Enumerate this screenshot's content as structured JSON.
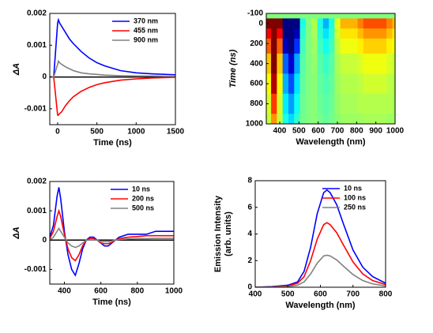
{
  "chart_data": [
    {
      "type": "line",
      "xlabel": "Time (ns)",
      "ylabel": "ΔA",
      "x": [
        -100,
        -50,
        0,
        10,
        25,
        50,
        100,
        150,
        200,
        300,
        400,
        500,
        600,
        800,
        1000,
        1200,
        1500
      ],
      "series": [
        {
          "name": "370 nm",
          "color": "#0000ff",
          "values": [
            0,
            0,
            0.0017,
            0.0018,
            0.0017,
            0.0016,
            0.0014,
            0.0012,
            0.00105,
            0.0008,
            0.0006,
            0.00045,
            0.00035,
            0.0002,
            0.00013,
            0.0001,
            7e-05
          ]
        },
        {
          "name": "455 nm",
          "color": "#ff0000",
          "values": [
            0,
            0,
            -0.0012,
            -0.0012,
            -0.00115,
            -0.0011,
            -0.0009,
            -0.00075,
            -0.00062,
            -0.00045,
            -0.00033,
            -0.00024,
            -0.00018,
            -0.0001,
            -6e-05,
            -3e-05,
            -1e-05
          ]
        },
        {
          "name": "900 nm",
          "color": "#808080",
          "values": [
            0,
            0,
            0.0004,
            0.0005,
            0.00045,
            0.0004,
            0.00032,
            0.00026,
            0.0002,
            0.00013,
            0.0001,
            8e-05,
            6e-05,
            4e-05,
            3e-05,
            3e-05,
            2e-05
          ]
        }
      ],
      "xlim": [
        -100,
        1500
      ],
      "ylim": [
        -0.0015,
        0.002
      ],
      "xticks": [
        0,
        500,
        1000,
        1500
      ],
      "yticks": [
        -0.001,
        0,
        0.001,
        0.002
      ],
      "legend": "upper right",
      "zero_line": true
    },
    {
      "type": "heatmap",
      "xlabel": "Wavelength (nm)",
      "ylabel": "Time (ns)",
      "colormap": "jet",
      "clim": [
        -0.0005,
        0.0005
      ],
      "y_reversed": true,
      "x": [
        340,
        370,
        400,
        430,
        460,
        490,
        520,
        550,
        580,
        610,
        640,
        670,
        700,
        730,
        760,
        790,
        820,
        850,
        880,
        910,
        940,
        970,
        1000
      ],
      "y": [
        -100,
        0,
        100,
        200,
        400,
        600,
        800,
        1000
      ],
      "z": [
        [
          0,
          0,
          0,
          0,
          0,
          0,
          0,
          0,
          0,
          0,
          0,
          0,
          0,
          0,
          0,
          0,
          0,
          0,
          0,
          0,
          0,
          0,
          0
        ],
        [
          0.0005,
          0.0018,
          0.0005,
          -0.0008,
          -0.0012,
          -0.0006,
          -0.0001,
          0,
          5e-05,
          -0.0001,
          -0.0002,
          -0.0001,
          0.0001,
          0.0002,
          0.0002,
          0.0002,
          0.00025,
          0.0003,
          0.0003,
          0.0003,
          0.0003,
          0.00025,
          0.0002
        ],
        [
          0.00038,
          0.00135,
          0.00038,
          -0.0006,
          -0.0009,
          -0.00045,
          -8e-05,
          0,
          4e-05,
          -8e-05,
          -0.00015,
          -8e-05,
          8e-05,
          0.00015,
          0.00015,
          0.00015,
          0.00019,
          0.00023,
          0.00023,
          0.00023,
          0.00023,
          0.00019,
          0.00015
        ],
        [
          0.00028,
          0.00099,
          0.00028,
          -0.00044,
          -0.00066,
          -0.00033,
          -6e-05,
          0,
          3e-05,
          -6e-05,
          -0.00011,
          -6e-05,
          6e-05,
          0.00011,
          0.00011,
          0.00011,
          0.00014,
          0.00017,
          0.00017,
          0.00017,
          0.00017,
          0.00014,
          0.00011
        ],
        [
          0.00018,
          0.00063,
          0.00018,
          -0.00028,
          -0.00042,
          -0.00021,
          -4e-05,
          0,
          2e-05,
          -4e-05,
          -7e-05,
          -4e-05,
          4e-05,
          7e-05,
          7e-05,
          7e-05,
          9e-05,
          0.00011,
          0.00011,
          0.00011,
          0.00011,
          9e-05,
          7e-05
        ],
        [
          0.00013,
          0.00045,
          0.00013,
          -0.0002,
          -0.0003,
          -0.00015,
          -3e-05,
          0,
          1e-05,
          -3e-05,
          -5e-05,
          -3e-05,
          3e-05,
          5e-05,
          5e-05,
          5e-05,
          6e-05,
          8e-05,
          8e-05,
          8e-05,
          8e-05,
          6e-05,
          5e-05
        ],
        [
          9e-05,
          0.00032,
          9e-05,
          -0.00014,
          -0.00022,
          -0.00011,
          -2e-05,
          0,
          1e-05,
          -2e-05,
          -4e-05,
          -2e-05,
          2e-05,
          4e-05,
          4e-05,
          4e-05,
          5e-05,
          5e-05,
          5e-05,
          5e-05,
          5e-05,
          5e-05,
          4e-05
        ],
        [
          7e-05,
          0.00023,
          7e-05,
          -0.0001,
          -0.00016,
          -8e-05,
          -1e-05,
          0,
          1e-05,
          -1e-05,
          -3e-05,
          -1e-05,
          1e-05,
          3e-05,
          3e-05,
          3e-05,
          3e-05,
          4e-05,
          4e-05,
          4e-05,
          4e-05,
          3e-05,
          3e-05
        ]
      ],
      "xlim": [
        330,
        1000
      ],
      "ylim": [
        -100,
        1000
      ],
      "xticks": [
        400,
        500,
        600,
        700,
        800,
        900,
        1000
      ],
      "yticks": [
        -100,
        0,
        200,
        400,
        600,
        800,
        1000
      ]
    },
    {
      "type": "line",
      "xlabel": "Time (ns)",
      "ylabel": "ΔA",
      "x": [
        320,
        340,
        360,
        370,
        380,
        400,
        420,
        440,
        460,
        480,
        500,
        520,
        540,
        560,
        580,
        600,
        620,
        640,
        660,
        680,
        700,
        750,
        800,
        850,
        900,
        950,
        1000
      ],
      "series": [
        {
          "name": "10 ns",
          "color": "#0000ff",
          "values": [
            0.0001,
            0.0005,
            0.0015,
            0.0018,
            0.0014,
            0.0003,
            -0.0005,
            -0.001,
            -0.0012,
            -0.0008,
            -0.0003,
            0,
            0.0001,
            0.0001,
            0,
            -0.0001,
            -0.0002,
            -0.0002,
            -0.0001,
            0,
            0.0001,
            0.0002,
            0.0002,
            0.0002,
            0.0003,
            0.0003,
            0.0003
          ]
        },
        {
          "name": "200 ns",
          "color": "#ff0000",
          "values": [
            5e-05,
            0.0003,
            0.0008,
            0.001,
            0.0008,
            0.0002,
            -0.0003,
            -0.0006,
            -0.0007,
            -0.0005,
            -0.0002,
            0,
            5e-05,
            5e-05,
            0,
            -0.0001,
            -0.00012,
            -0.00012,
            -8e-05,
            0,
            5e-05,
            0.0001,
            0.00012,
            0.00015,
            0.00015,
            0.00015,
            0.00015
          ]
        },
        {
          "name": "500 ns",
          "color": "#808080",
          "values": [
            0,
            0.0001,
            0.0003,
            0.0004,
            0.0003,
            0.0001,
            -0.0001,
            -0.0002,
            -0.00025,
            -0.0002,
            -0.0001,
            0,
            0,
            0,
            0,
            -5e-05,
            -5e-05,
            -5e-05,
            -3e-05,
            0,
            2e-05,
            4e-05,
            5e-05,
            5e-05,
            6e-05,
            6e-05,
            6e-05
          ]
        }
      ],
      "xlim": [
        320,
        1000
      ],
      "ylim": [
        -0.0015,
        0.002
      ],
      "xticks": [
        400,
        600,
        800,
        1000
      ],
      "yticks": [
        -0.001,
        0,
        0.001,
        0.002
      ],
      "legend": "upper right",
      "zero_line": true
    },
    {
      "type": "line",
      "xlabel": "Wavelength (nm)",
      "ylabel": [
        "Emission Intensity",
        "(arb. units)"
      ],
      "x": [
        400,
        450,
        500,
        530,
        550,
        570,
        590,
        610,
        620,
        630,
        650,
        670,
        700,
        730,
        760,
        800
      ],
      "series": [
        {
          "name": "10 ns",
          "color": "#0000ff",
          "values": [
            0,
            0.05,
            0.15,
            0.4,
            1.2,
            3,
            5.5,
            7.1,
            7.3,
            7.1,
            6.2,
            4.8,
            2.8,
            1.5,
            0.8,
            0.3
          ]
        },
        {
          "name": "100 ns",
          "color": "#ff0000",
          "values": [
            0,
            0.03,
            0.1,
            0.3,
            0.8,
            2,
            3.6,
            4.7,
            4.85,
            4.7,
            4.1,
            3.2,
            1.9,
            1.0,
            0.5,
            0.2
          ]
        },
        {
          "name": "250 ns",
          "color": "#808080",
          "values": [
            0,
            0.02,
            0.05,
            0.15,
            0.4,
            1,
            1.8,
            2.35,
            2.4,
            2.35,
            2.05,
            1.6,
            0.95,
            0.5,
            0.25,
            0.1
          ]
        }
      ],
      "xlim": [
        400,
        800
      ],
      "ylim": [
        0,
        8
      ],
      "xticks": [
        400,
        500,
        600,
        700,
        800
      ],
      "yticks": [
        0,
        2,
        4,
        6,
        8
      ],
      "legend": "upper right",
      "zero_line": false
    }
  ]
}
